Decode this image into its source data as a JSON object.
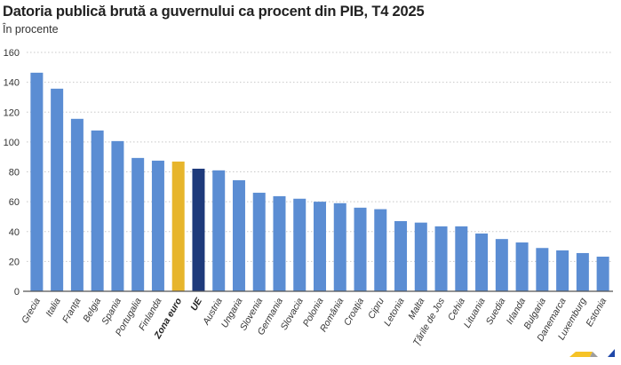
{
  "chart_data": {
    "type": "bar",
    "title": "Datoria publică brută a guvernului ca procent din PIB, T4 2025",
    "subtitle": "În procente",
    "ylim": [
      0,
      160
    ],
    "yticks": [
      0,
      20,
      40,
      60,
      80,
      100,
      120,
      140,
      160
    ],
    "grid": true,
    "categories": [
      "Grecia",
      "Italia",
      "Franța",
      "Belgia",
      "Spania",
      "Portugalia",
      "Finlanda",
      "Zona euro",
      "UE",
      "Austria",
      "Ungaria",
      "Slovenia",
      "Germania",
      "Slovacia",
      "Polonia",
      "România",
      "Croația",
      "Cipru",
      "Letonia",
      "Malta",
      "Țările de Jos",
      "Cehia",
      "Lituania",
      "Suedia",
      "Irlanda",
      "Bulgaria",
      "Danemarca",
      "Luxemburg",
      "Estonia"
    ],
    "values": [
      146.4,
      135.7,
      115.5,
      107.7,
      100.6,
      89.3,
      87.5,
      86.9,
      82.1,
      81.0,
      74.4,
      66.0,
      63.7,
      62.0,
      60.0,
      59.0,
      56.0,
      55.0,
      47.0,
      46.0,
      43.5,
      43.5,
      38.7,
      35.0,
      32.7,
      29.0,
      27.4,
      25.6,
      23.2
    ],
    "highlight": {
      "Zona euro": "#e7b52c",
      "UE": "#1e3a7b"
    },
    "colors": {
      "default": "#5b8dd3",
      "grid": "#c8c8c8",
      "axis": "#555555"
    }
  }
}
